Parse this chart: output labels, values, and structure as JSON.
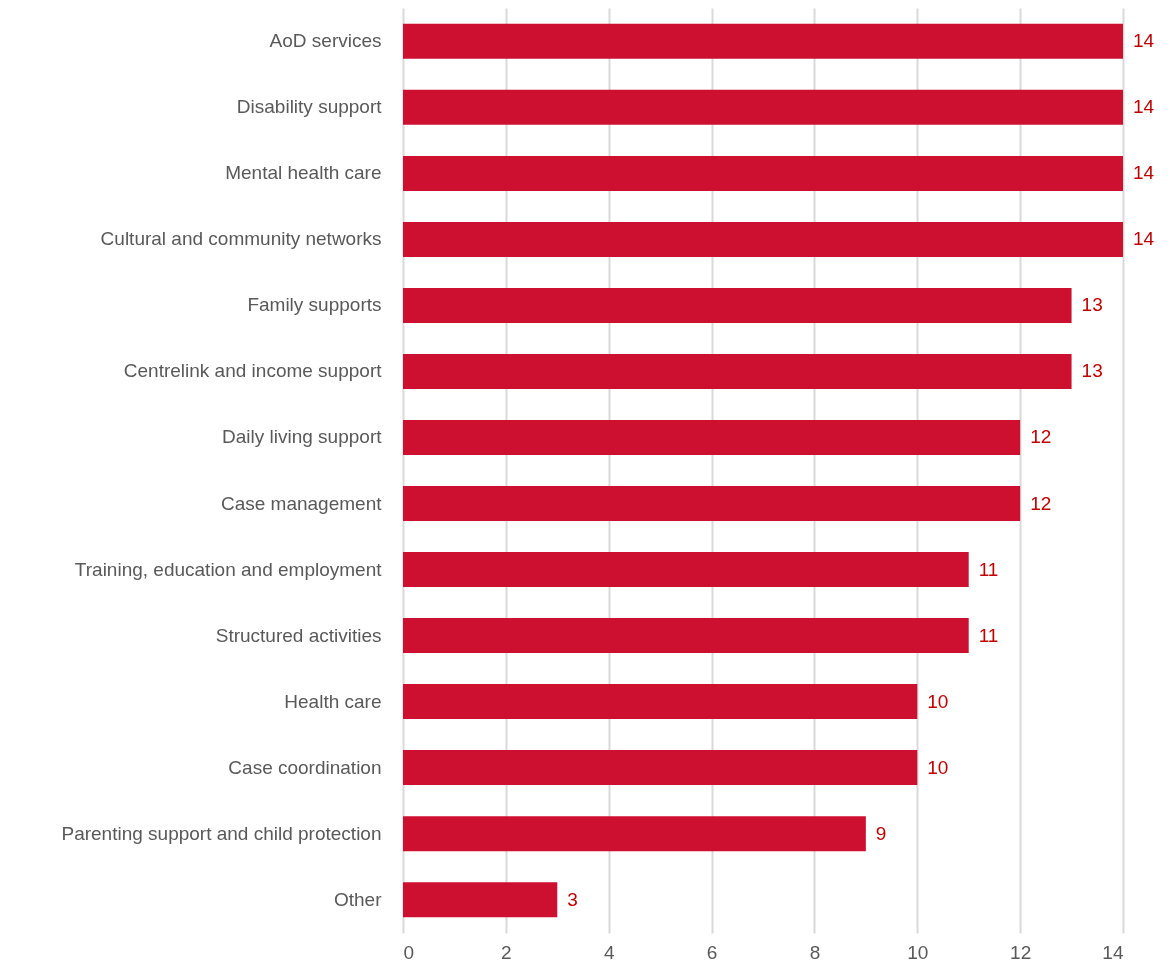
{
  "chart_data": {
    "type": "bar",
    "orientation": "horizontal",
    "categories": [
      "AoD services",
      "Disability support",
      "Mental health care",
      "Cultural and community networks",
      "Family supports",
      "Centrelink and income support",
      "Daily living support",
      "Case management",
      "Training, education and employment",
      "Structured activities",
      "Health care",
      "Case coordination",
      "Parenting support and child protection",
      "Other"
    ],
    "values": [
      14,
      14,
      14,
      14,
      13,
      13,
      12,
      12,
      11,
      11,
      10,
      10,
      9,
      3
    ],
    "color": "#ce1030",
    "xlim": [
      0,
      14
    ],
    "xticks": [
      0,
      2,
      4,
      6,
      8,
      10,
      12,
      14
    ],
    "grid": "x",
    "data_labels": true
  }
}
